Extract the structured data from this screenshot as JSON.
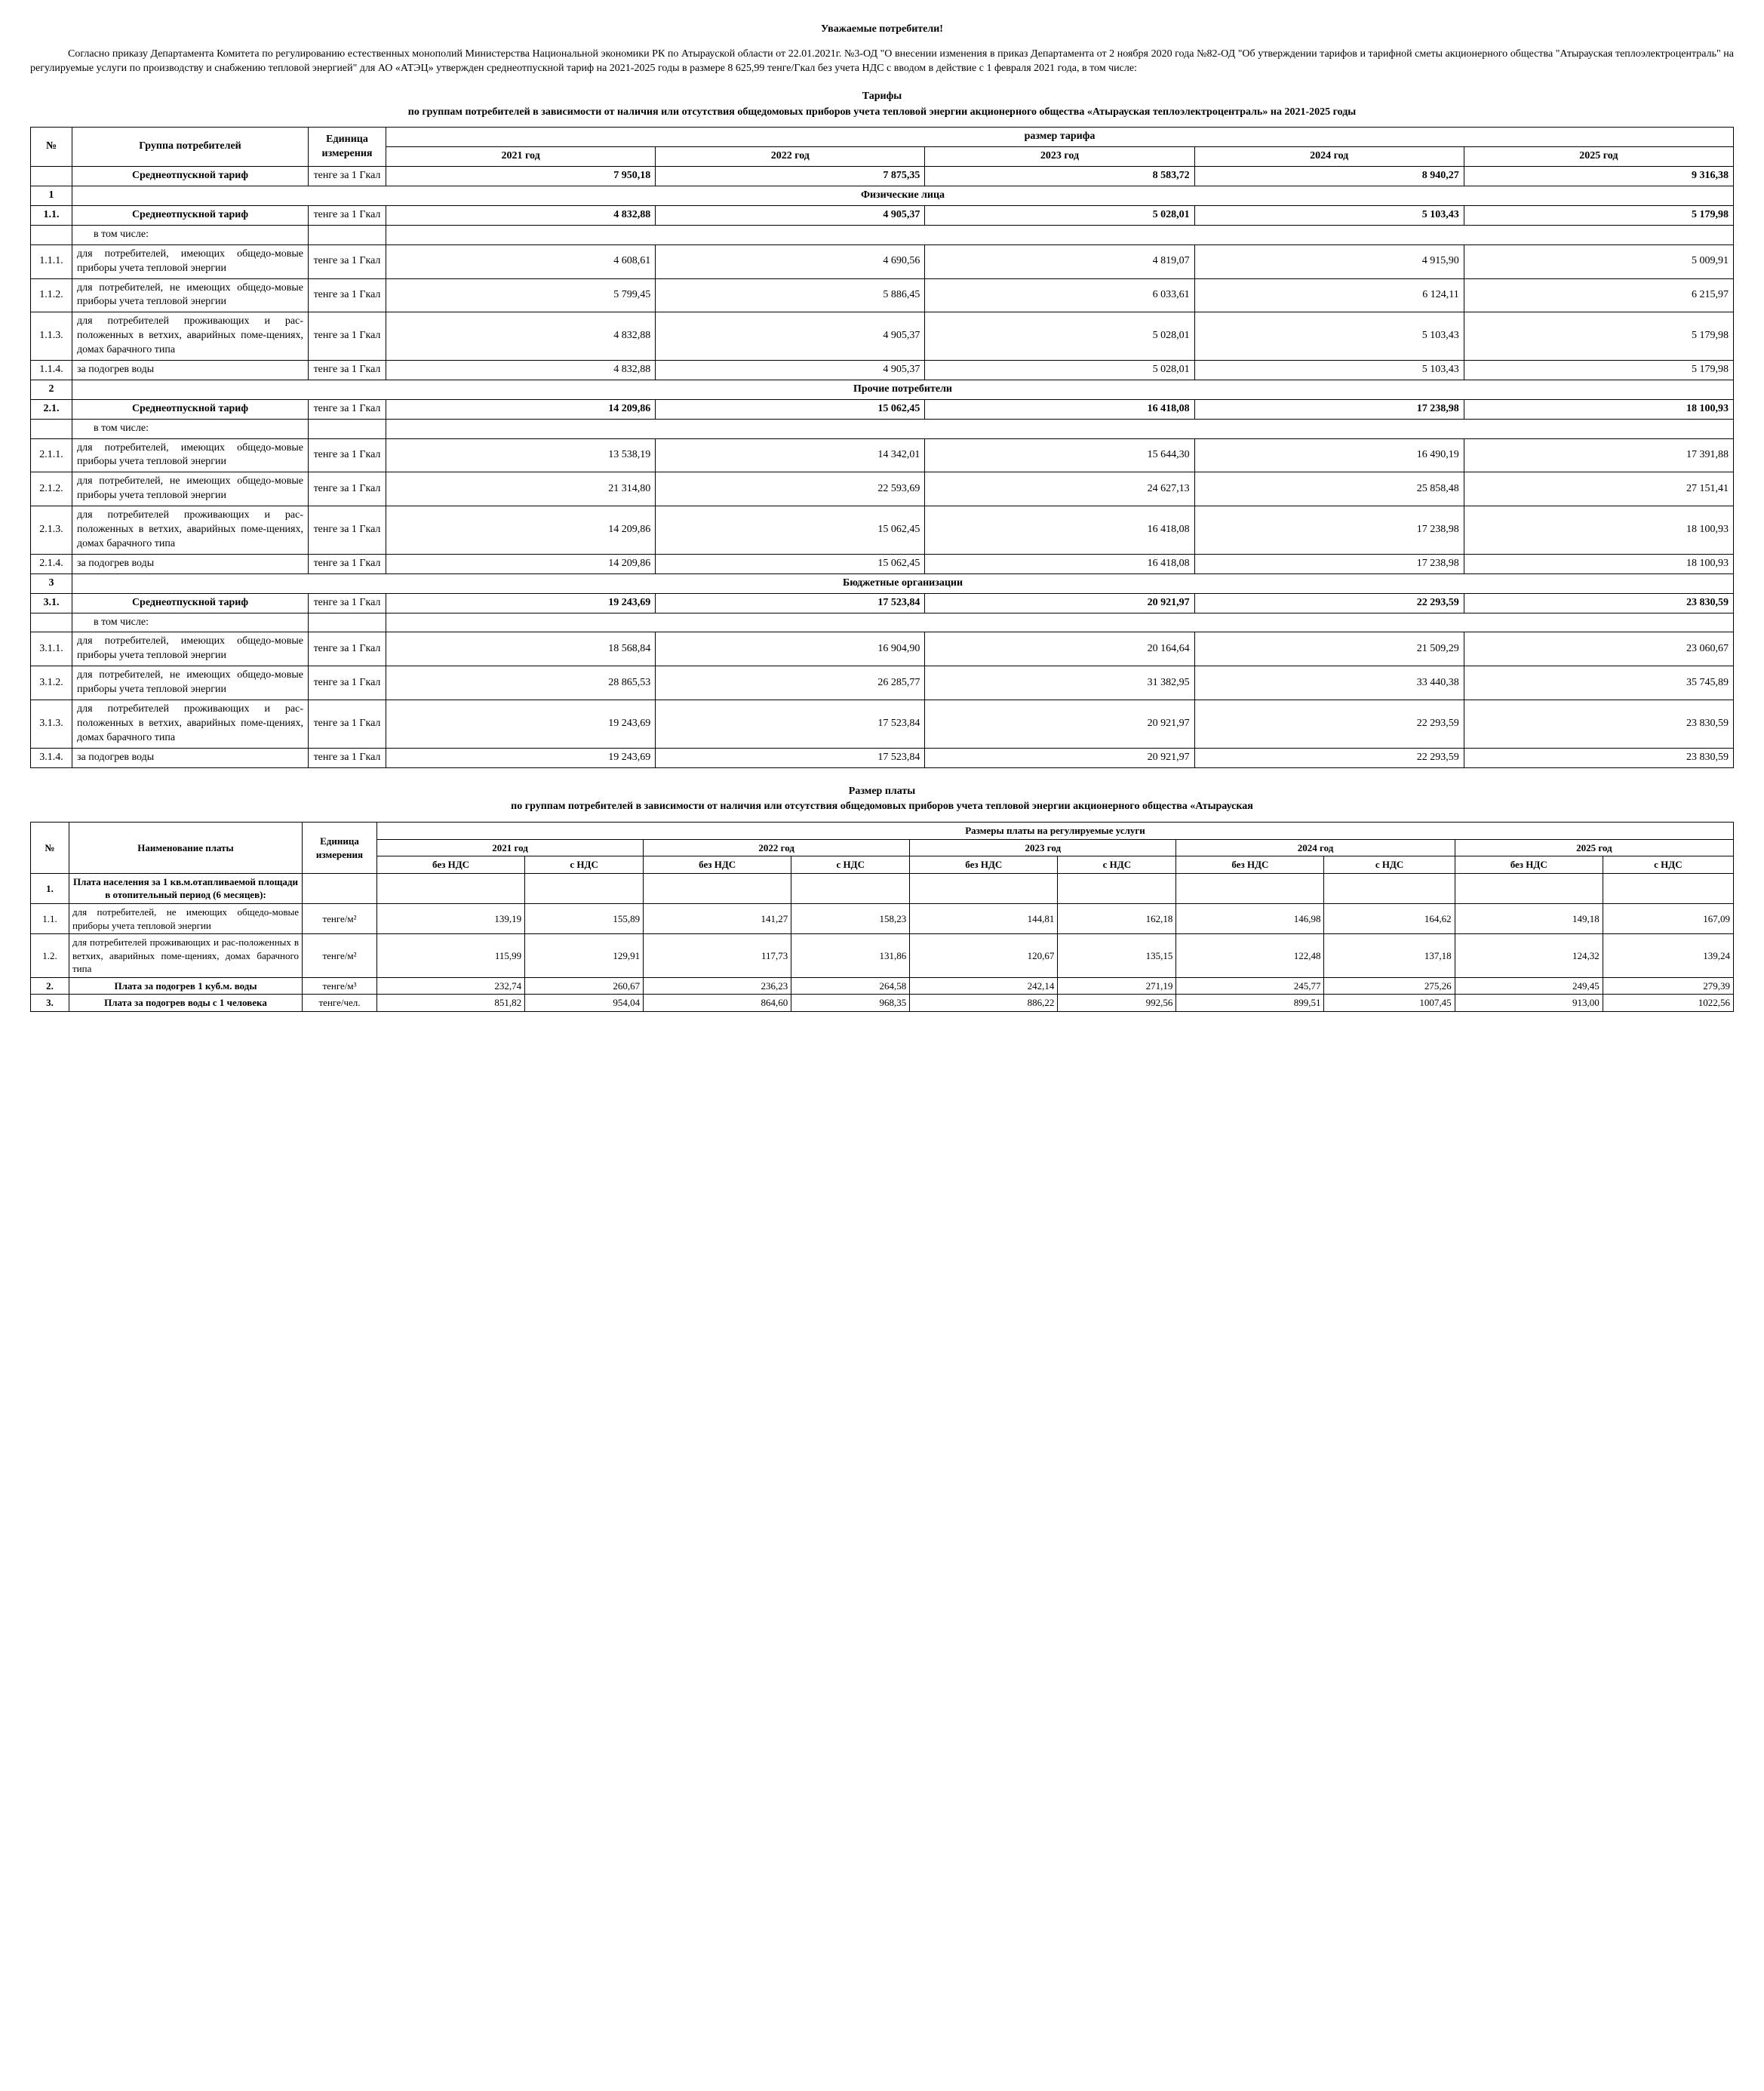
{
  "header": "Уважаемые потребители!",
  "intro": "Согласно приказу Департамента Комитета по регулированию естественных монополий Министерства Национальной экономики РК по Атырауской области от 22.01.2021г. №3-ОД \"О внесении изменения в приказ Департамента от 2 ноября 2020 года №82-ОД \"Об утверждении тарифов и тарифной сметы акционерного общества \"Атырауская теплоэлектроцентраль\" на регулируемые услуги по производству и снабжению тепловой энергией\" для АО «АТЭЦ» утвержден среднеотпускной тариф на 2021-2025 годы в размере   8 625,99 тенге/Гкал без учета НДС с вводом в действие с 1 февраля 2021 года,          в том числе:",
  "table1": {
    "title": "Тарифы",
    "subtitle": "по группам потребителей  в зависимости от наличия или отсутствия общедомовых приборов учета тепловой энергии акционерного общества «Атырауская теплоэлектроцентраль»  на 2021-2025 годы",
    "headers": {
      "num": "№",
      "group": "Группа потребителей",
      "unit": "Единица измерения",
      "rate": "размер тарифа",
      "years": [
        "2021 год",
        "2022 год",
        "2023 год",
        "2024 год",
        "2025 год"
      ]
    },
    "unit_label": "тенге за 1 Гкал",
    "avg_label": "Среднеотпускной тариф",
    "avg_row": [
      "7 950,18",
      "7 875,35",
      "8 583,72",
      "8 940,27",
      "9 316,38"
    ],
    "sections": [
      {
        "num": "1",
        "title": "Физические лица",
        "avg_num": "1.1.",
        "avg": [
          "4 832,88",
          "4 905,37",
          "5 028,01",
          "5 103,43",
          "5 179,98"
        ],
        "incl": "в том числе:",
        "rows": [
          {
            "n": "1.1.1.",
            "g": "для потребителей, имеющих общедо-мовые приборы учета тепловой энергии",
            "v": [
              "4 608,61",
              "4 690,56",
              "4 819,07",
              "4 915,90",
              "5 009,91"
            ]
          },
          {
            "n": "1.1.2.",
            "g": "для потребителей, не имеющих общедо-мовые приборы учета тепловой энергии",
            "v": [
              "5 799,45",
              "5 886,45",
              "6 033,61",
              "6 124,11",
              "6 215,97"
            ]
          },
          {
            "n": "1.1.3.",
            "g": "для потребителей проживающих и рас-положенных в ветхих, аварийных поме-щениях, домах барачного типа",
            "v": [
              "4 832,88",
              "4 905,37",
              "5 028,01",
              "5 103,43",
              "5 179,98"
            ]
          },
          {
            "n": "1.1.4.",
            "g": "за подогрев воды",
            "v": [
              "4 832,88",
              "4 905,37",
              "5 028,01",
              "5 103,43",
              "5 179,98"
            ]
          }
        ]
      },
      {
        "num": "2",
        "title": "Прочие потребители",
        "avg_num": "2.1.",
        "avg": [
          "14 209,86",
          "15 062,45",
          "16 418,08",
          "17 238,98",
          "18 100,93"
        ],
        "incl": "в том числе:",
        "rows": [
          {
            "n": "2.1.1.",
            "g": "для потребителей, имеющих общедо-мовые приборы учета тепловой энергии",
            "v": [
              "13 538,19",
              "14 342,01",
              "15 644,30",
              "16 490,19",
              "17 391,88"
            ]
          },
          {
            "n": "2.1.2.",
            "g": "для потребителей, не имеющих общедо-мовые приборы учета тепловой энергии",
            "v": [
              "21 314,80",
              "22 593,69",
              "24 627,13",
              "25 858,48",
              "27 151,41"
            ]
          },
          {
            "n": "2.1.3.",
            "g": "для потребителей проживающих и рас-положенных в ветхих, аварийных поме-щениях, домах барачного типа",
            "v": [
              "14 209,86",
              "15 062,45",
              "16 418,08",
              "17 238,98",
              "18 100,93"
            ]
          },
          {
            "n": "2.1.4.",
            "g": "за подогрев воды",
            "v": [
              "14 209,86",
              "15 062,45",
              "16 418,08",
              "17 238,98",
              "18 100,93"
            ]
          }
        ]
      },
      {
        "num": "3",
        "title": "Бюджетные организации",
        "avg_num": "3.1.",
        "avg": [
          "19 243,69",
          "17 523,84",
          "20 921,97",
          "22 293,59",
          "23 830,59"
        ],
        "incl": "в том числе:",
        "rows": [
          {
            "n": "3.1.1.",
            "g": "для потребителей, имеющих общедо-мовые приборы учета тепловой энергии",
            "v": [
              "18 568,84",
              "16 904,90",
              "20 164,64",
              "21 509,29",
              "23 060,67"
            ]
          },
          {
            "n": "3.1.2.",
            "g": "для потребителей, не имеющих общедо-мовые приборы учета тепловой энергии",
            "v": [
              "28 865,53",
              "26 285,77",
              "31 382,95",
              "33 440,38",
              "35 745,89"
            ]
          },
          {
            "n": "3.1.3.",
            "g": "для потребителей проживающих и рас-положенных в ветхих, аварийных поме-щениях, домах барачного типа",
            "v": [
              "19 243,69",
              "17 523,84",
              "20 921,97",
              "22 293,59",
              "23 830,59"
            ]
          },
          {
            "n": "3.1.4.",
            "g": "за подогрев воды",
            "v": [
              "19 243,69",
              "17 523,84",
              "20 921,97",
              "22 293,59",
              "23 830,59"
            ]
          }
        ]
      }
    ]
  },
  "table2": {
    "title": "Размер платы",
    "subtitle": "по группам потребителей в зависимости от наличия или отсутствия общедомовых приборов учета тепловой энергии  акционерного общества «Атырауская",
    "headers": {
      "num": "№",
      "name": "Наименование платы",
      "unit": "Единица измерения",
      "rate": "Размеры платы на регулируемые услуги",
      "years": [
        "2021 год",
        "2022 год",
        "2023 год",
        "2024 год",
        "2025 год"
      ],
      "nds": [
        "без НДС",
        "с НДС"
      ]
    },
    "rows": [
      {
        "n": "1.",
        "name": "Плата населения за 1 кв.м.отапливаемой площади в отопительный период (6 месяцев):",
        "unit": "",
        "v": [
          "",
          "",
          "",
          "",
          "",
          "",
          "",
          "",
          "",
          ""
        ],
        "bold": true
      },
      {
        "n": "1.1.",
        "name": "для потребителей, не имеющих общедо-мовые приборы учета тепловой энергии",
        "unit": "тенге/м²",
        "v": [
          "139,19",
          "155,89",
          "141,27",
          "158,23",
          "144,81",
          "162,18",
          "146,98",
          "164,62",
          "149,18",
          "167,09"
        ]
      },
      {
        "n": "1.2.",
        "name": "для потребителей проживающих и рас-положенных в ветхих, аварийных поме-щениях, домах барачного типа",
        "unit": "тенге/м²",
        "v": [
          "115,99",
          "129,91",
          "117,73",
          "131,86",
          "120,67",
          "135,15",
          "122,48",
          "137,18",
          "124,32",
          "139,24"
        ]
      },
      {
        "n": "2.",
        "name": "Плата за подогрев 1 куб.м. воды",
        "unit": "тенге/м³",
        "v": [
          "232,74",
          "260,67",
          "236,23",
          "264,58",
          "242,14",
          "271,19",
          "245,77",
          "275,26",
          "249,45",
          "279,39"
        ],
        "bold": true
      },
      {
        "n": "3.",
        "name": "Плата за подогрев воды с 1 человека",
        "unit": "тенге/чел.",
        "v": [
          "851,82",
          "954,04",
          "864,60",
          "968,35",
          "886,22",
          "992,56",
          "899,51",
          "1007,45",
          "913,00",
          "1022,56"
        ],
        "bold": true
      }
    ]
  }
}
